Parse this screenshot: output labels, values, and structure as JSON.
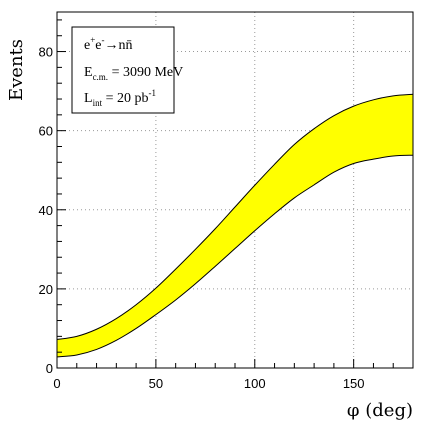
{
  "chart_data": {
    "type": "area",
    "title": "",
    "xlabel": "φ (deg)",
    "ylabel": "Events",
    "xlim": [
      0,
      180
    ],
    "ylim": [
      0,
      90
    ],
    "xticks": [
      "0",
      "50",
      "100",
      "150"
    ],
    "yticks": [
      "0",
      "20",
      "40",
      "60",
      "80"
    ],
    "xtick_values": [
      0,
      50,
      100,
      150
    ],
    "ytick_values": [
      0,
      20,
      40,
      60,
      80
    ],
    "grid": true,
    "band_color": "#ffff00",
    "line_color": "#000000",
    "x": [
      0,
      10,
      20,
      30,
      40,
      50,
      60,
      70,
      80,
      90,
      100,
      110,
      120,
      130,
      140,
      150,
      160,
      170,
      180
    ],
    "upper": [
      7.2,
      8.0,
      9.8,
      12.5,
      16.0,
      20.2,
      25.0,
      30.0,
      35.2,
      40.7,
      46.2,
      51.5,
      56.5,
      60.5,
      63.8,
      66.2,
      67.8,
      68.8,
      69.2
    ],
    "lower": [
      2.8,
      3.3,
      4.7,
      7.0,
      10.0,
      13.5,
      17.2,
      21.3,
      25.7,
      30.2,
      34.7,
      39.0,
      43.0,
      46.3,
      49.5,
      51.7,
      52.8,
      53.6,
      53.8
    ],
    "legend": {
      "placement": "top-left",
      "reaction": {
        "base1": "e",
        "sup1": "+",
        "base2": "e",
        "sup2": "-",
        "arrow": "→",
        "product": "nn̄"
      },
      "energy": {
        "base": "E",
        "sub": "c.m.",
        "rest": " = 3090 MeV"
      },
      "lumi": {
        "base": "L",
        "sub": "int",
        "rest": " = 20 pb",
        "sup": "-1"
      }
    }
  }
}
